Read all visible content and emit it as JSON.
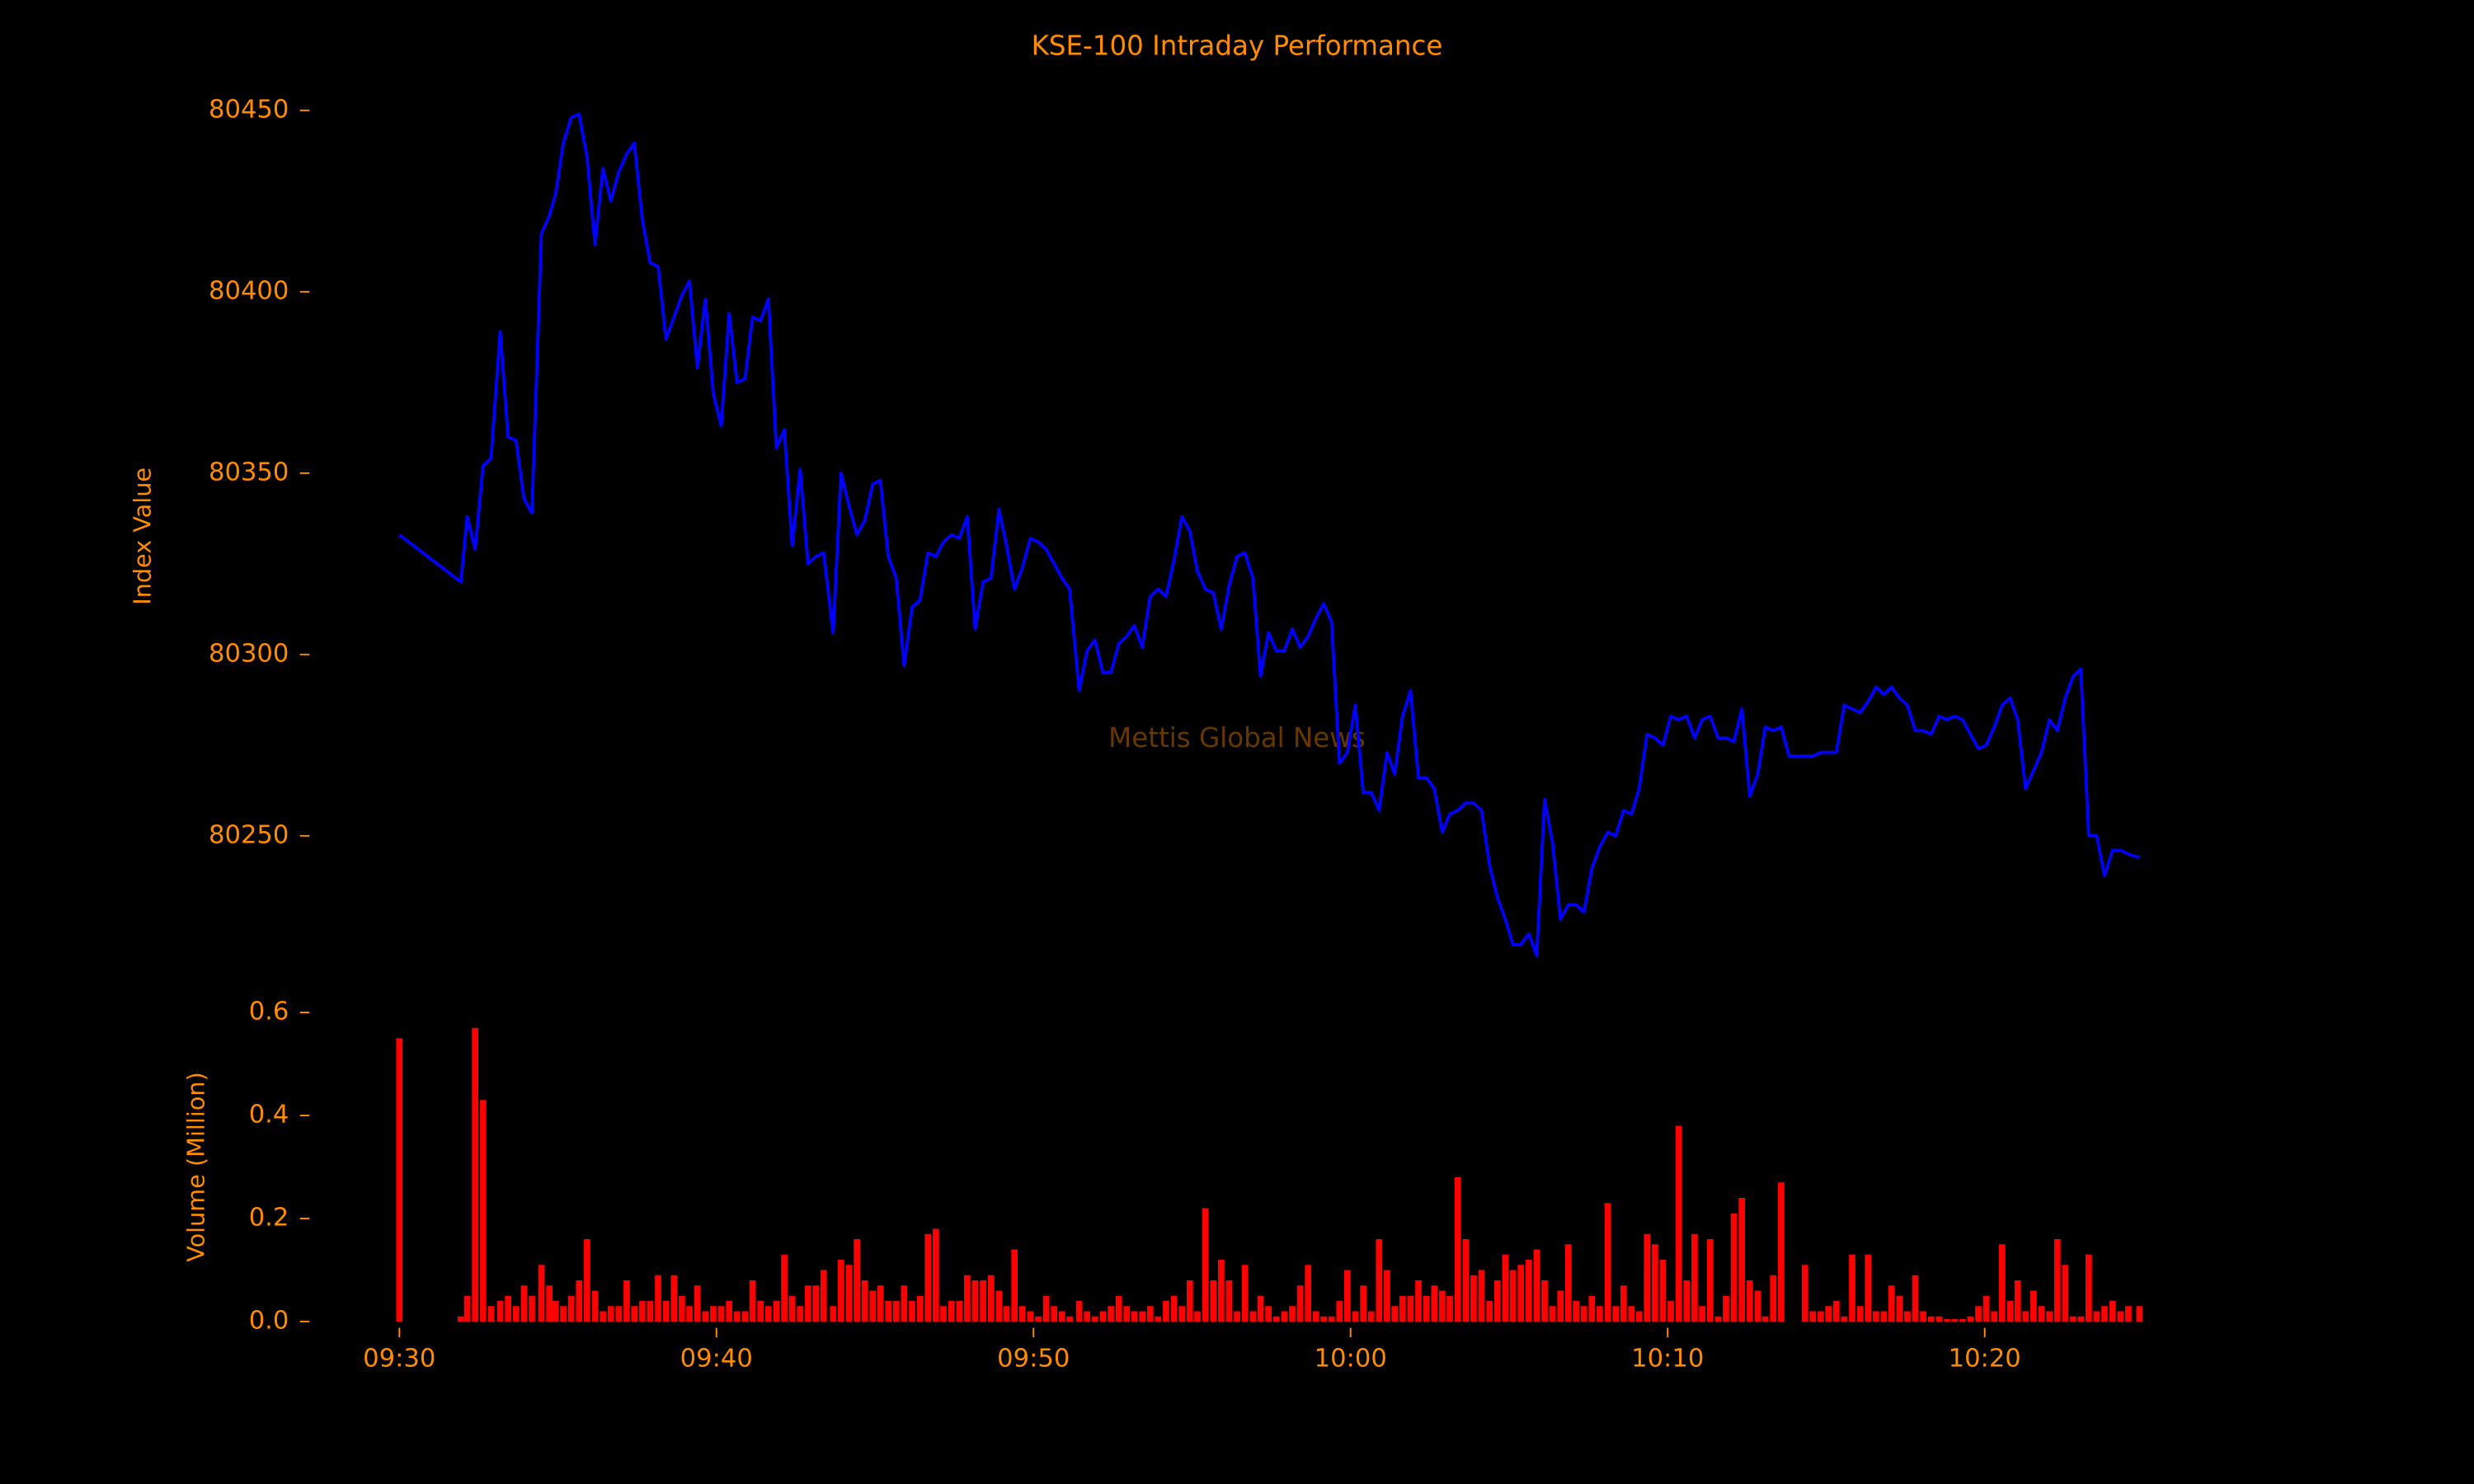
{
  "chart_data": [
    {
      "type": "line",
      "title": "KSE-100 Intraday Performance",
      "ylabel": "Index Value",
      "annotation": "Mettis Global News",
      "color": "#0000ff",
      "xlim": [
        567.5,
        627.5
      ],
      "ylim": [
        80210,
        80455
      ],
      "yticks": [
        80250,
        80300,
        80350,
        80400,
        80450
      ],
      "x": [
        570,
        571.94,
        572.14,
        572.39,
        572.64,
        572.89,
        573.18,
        573.43,
        573.68,
        573.93,
        574.18,
        574.48,
        574.73,
        574.93,
        575.17,
        575.42,
        575.67,
        575.92,
        576.17,
        576.42,
        576.67,
        576.92,
        577.17,
        577.41,
        577.66,
        577.91,
        578.16,
        578.41,
        578.66,
        578.91,
        579.15,
        579.4,
        579.65,
        579.9,
        580.15,
        580.4,
        580.65,
        580.9,
        581.14,
        581.39,
        581.64,
        581.89,
        582.14,
        582.39,
        582.64,
        582.89,
        583.13,
        583.38,
        583.68,
        583.93,
        584.18,
        584.43,
        584.68,
        584.93,
        585.17,
        585.42,
        585.67,
        585.92,
        586.17,
        586.42,
        586.67,
        586.92,
        587.16,
        587.41,
        587.66,
        587.91,
        588.16,
        588.41,
        588.66,
        588.91,
        589.15,
        589.4,
        589.65,
        589.9,
        590.15,
        590.4,
        590.65,
        590.9,
        591.14,
        591.44,
        591.69,
        591.94,
        592.19,
        592.44,
        592.69,
        592.94,
        593.18,
        593.43,
        593.68,
        593.93,
        594.18,
        594.43,
        594.68,
        594.93,
        595.17,
        595.42,
        595.67,
        595.92,
        596.17,
        596.42,
        596.67,
        596.92,
        597.16,
        597.41,
        597.66,
        597.91,
        598.16,
        598.41,
        598.66,
        598.91,
        599.15,
        599.4,
        599.65,
        599.9,
        600.15,
        600.4,
        600.65,
        600.9,
        601.15,
        601.39,
        601.64,
        601.89,
        602.14,
        602.39,
        602.64,
        602.89,
        603.13,
        603.38,
        603.63,
        603.88,
        604.13,
        604.38,
        604.63,
        604.88,
        605.12,
        605.37,
        605.62,
        605.87,
        606.12,
        606.37,
        606.62,
        606.87,
        607.11,
        607.36,
        607.61,
        607.86,
        608.11,
        608.36,
        608.61,
        608.86,
        609.1,
        609.35,
        609.6,
        609.85,
        610.1,
        610.35,
        610.6,
        610.85,
        611.09,
        611.34,
        611.59,
        611.84,
        612.09,
        612.34,
        612.59,
        612.84,
        613.08,
        613.33,
        613.58,
        613.83,
        614.08,
        614.33,
        614.58,
        614.83,
        615.07,
        615.32,
        615.57,
        615.82,
        616.07,
        616.32,
        616.57,
        616.82,
        617.06,
        617.31,
        617.56,
        617.81,
        618.06,
        618.31,
        618.56,
        618.81,
        619.05,
        619.3,
        619.55,
        619.8,
        620.05,
        620.3,
        620.55,
        620.8,
        621.04,
        621.29,
        621.54,
        621.79,
        622.04,
        622.29,
        622.54,
        622.79,
        623.03,
        623.28,
        623.53,
        623.78,
        624.03,
        624.28,
        624.53,
        624.88
      ],
      "values": [
        80333,
        80320,
        80338,
        80329,
        80352,
        80354,
        80389,
        80360,
        80359,
        80343,
        80339,
        80416,
        80421,
        80427,
        80441,
        80448,
        80449,
        80437,
        80413,
        80434,
        80425,
        80433,
        80438,
        80441,
        80420,
        80408,
        80407,
        80387,
        80393,
        80399,
        80403,
        80379,
        80398,
        80372,
        80363,
        80394,
        80375,
        80376,
        80393,
        80392,
        80398,
        80357,
        80362,
        80330,
        80351,
        80325,
        80327,
        80328,
        80306,
        80350,
        80341,
        80333,
        80337,
        80347,
        80348,
        80327,
        80321,
        80297,
        80313,
        80315,
        80328,
        80327,
        80331,
        80333,
        80332,
        80338,
        80307,
        80320,
        80321,
        80340,
        80330,
        80318,
        80324,
        80332,
        80331,
        80329,
        80325,
        80321,
        80318,
        80290,
        80301,
        80304,
        80295,
        80295,
        80303,
        80305,
        80308,
        80302,
        80316,
        80318,
        80316,
        80326,
        80338,
        80334,
        80323,
        80318,
        80317,
        80307,
        80319,
        80327,
        80328,
        80321,
        80294,
        80306,
        80301,
        80301,
        80307,
        80302,
        80305,
        80310,
        80314,
        80309,
        80270,
        80273,
        80286,
        80262,
        80262,
        80257,
        80273,
        80267,
        80283,
        80290,
        80266,
        80266,
        80263,
        80251,
        80256,
        80257,
        80259,
        80259,
        80257,
        80242,
        80233,
        80227,
        80220,
        80220,
        80223,
        80217,
        80260,
        80248,
        80227,
        80231,
        80231,
        80229,
        80241,
        80247,
        80251,
        80250,
        80257,
        80256,
        80263,
        80278,
        80277,
        80275,
        80283,
        80282,
        80283,
        80277,
        80282,
        80283,
        80277,
        80277,
        80276,
        80285,
        80261,
        80267,
        80280,
        80279,
        80280,
        80272,
        80272,
        80272,
        80272,
        80273,
        80273,
        80273,
        80286,
        80285,
        80284,
        80287,
        80291,
        80289,
        80291,
        80288,
        80286,
        80279,
        80279,
        80278,
        80283,
        80282,
        80283,
        80282,
        80278,
        80274,
        80275,
        80280,
        80286,
        80288,
        80282,
        80263,
        80268,
        80273,
        80282,
        80279,
        80288,
        80294,
        80296,
        80250,
        80250,
        80239,
        80246,
        80246,
        80245,
        80244
      ]
    },
    {
      "type": "bar",
      "ylabel": "Volume (Million)",
      "color": "#ff0000",
      "xlim": [
        567.5,
        627.5
      ],
      "ylim": [
        0,
        0.6
      ],
      "yticks": [
        {
          "value": 0,
          "label": "0.0"
        },
        0.2,
        0.4,
        0.6
      ],
      "xticks": [
        {
          "value": 570,
          "label": "09:30"
        },
        {
          "value": 580,
          "label": "09:40"
        },
        {
          "value": 590,
          "label": "09:50"
        },
        {
          "value": 600,
          "label": "10:00"
        },
        {
          "value": 610,
          "label": "10:10"
        },
        {
          "value": 620,
          "label": "10:20"
        }
      ],
      "x": [
        570,
        571.94,
        572.14,
        572.39,
        572.64,
        572.89,
        573.18,
        573.43,
        573.68,
        573.93,
        574.18,
        574.48,
        574.73,
        574.93,
        575.17,
        575.42,
        575.67,
        575.92,
        576.17,
        576.42,
        576.67,
        576.92,
        577.17,
        577.41,
        577.66,
        577.91,
        578.16,
        578.41,
        578.66,
        578.91,
        579.15,
        579.4,
        579.65,
        579.9,
        580.15,
        580.4,
        580.65,
        580.9,
        581.14,
        581.39,
        581.64,
        581.89,
        582.14,
        582.39,
        582.64,
        582.89,
        583.13,
        583.38,
        583.68,
        583.93,
        584.18,
        584.43,
        584.68,
        584.93,
        585.17,
        585.42,
        585.67,
        585.92,
        586.17,
        586.42,
        586.67,
        586.92,
        587.16,
        587.41,
        587.66,
        587.91,
        588.16,
        588.41,
        588.66,
        588.91,
        589.15,
        589.4,
        589.65,
        589.9,
        590.15,
        590.4,
        590.65,
        590.9,
        591.14,
        591.44,
        591.69,
        591.94,
        592.19,
        592.44,
        592.69,
        592.94,
        593.18,
        593.43,
        593.68,
        593.93,
        594.18,
        594.43,
        594.68,
        594.93,
        595.17,
        595.42,
        595.67,
        595.92,
        596.17,
        596.42,
        596.67,
        596.92,
        597.16,
        597.41,
        597.66,
        597.91,
        598.16,
        598.41,
        598.66,
        598.91,
        599.15,
        599.4,
        599.65,
        599.9,
        600.15,
        600.4,
        600.65,
        600.9,
        601.15,
        601.39,
        601.64,
        601.89,
        602.14,
        602.39,
        602.64,
        602.89,
        603.13,
        603.38,
        603.63,
        603.88,
        604.13,
        604.38,
        604.63,
        604.88,
        605.12,
        605.37,
        605.62,
        605.87,
        606.12,
        606.37,
        606.62,
        606.87,
        607.11,
        607.36,
        607.61,
        607.86,
        608.11,
        608.36,
        608.61,
        608.86,
        609.1,
        609.35,
        609.6,
        609.85,
        610.1,
        610.35,
        610.6,
        610.85,
        611.09,
        611.34,
        611.59,
        611.84,
        612.09,
        612.34,
        612.59,
        612.84,
        613.08,
        613.33,
        613.58,
        613.83,
        614.08,
        614.33,
        614.58,
        614.83,
        615.07,
        615.32,
        615.57,
        615.82,
        616.07,
        616.32,
        616.57,
        616.82,
        617.06,
        617.31,
        617.56,
        617.81,
        618.06,
        618.31,
        618.56,
        618.81,
        619.05,
        619.3,
        619.55,
        619.8,
        620.05,
        620.3,
        620.55,
        620.8,
        621.04,
        621.29,
        621.54,
        621.79,
        622.04,
        622.29,
        622.54,
        622.79,
        623.03,
        623.28,
        623.53,
        623.78,
        624.03,
        624.28,
        624.53,
        624.88
      ],
      "values": [
        0.55,
        0.01,
        0.05,
        0.57,
        0.43,
        0.03,
        0.04,
        0.05,
        0.03,
        0.07,
        0.05,
        0.11,
        0.07,
        0.04,
        0.03,
        0.05,
        0.08,
        0.16,
        0.06,
        0.02,
        0.03,
        0.03,
        0.08,
        0.03,
        0.04,
        0.04,
        0.09,
        0.04,
        0.09,
        0.05,
        0.03,
        0.07,
        0.02,
        0.03,
        0.03,
        0.04,
        0.02,
        0.02,
        0.08,
        0.04,
        0.03,
        0.04,
        0.13,
        0.05,
        0.03,
        0.07,
        0.07,
        0.1,
        0.03,
        0.12,
        0.11,
        0.16,
        0.08,
        0.06,
        0.07,
        0.04,
        0.04,
        0.07,
        0.04,
        0.05,
        0.17,
        0.18,
        0.03,
        0.04,
        0.04,
        0.09,
        0.08,
        0.08,
        0.09,
        0.06,
        0.03,
        0.14,
        0.03,
        0.02,
        0.01,
        0.05,
        0.03,
        0.02,
        0.01,
        0.04,
        0.02,
        0.01,
        0.02,
        0.03,
        0.05,
        0.03,
        0.02,
        0.02,
        0.03,
        0.01,
        0.04,
        0.05,
        0.03,
        0.08,
        0.02,
        0.22,
        0.08,
        0.12,
        0.08,
        0.02,
        0.11,
        0.02,
        0.05,
        0.03,
        0.01,
        0.02,
        0.03,
        0.07,
        0.11,
        0.02,
        0.01,
        0.01,
        0.04,
        0.1,
        0.02,
        0.07,
        0.02,
        0.16,
        0.1,
        0.03,
        0.05,
        0.05,
        0.08,
        0.05,
        0.07,
        0.06,
        0.05,
        0.28,
        0.16,
        0.09,
        0.1,
        0.04,
        0.08,
        0.13,
        0.1,
        0.11,
        0.12,
        0.14,
        0.08,
        0.03,
        0.06,
        0.15,
        0.04,
        0.03,
        0.05,
        0.03,
        0.23,
        0.03,
        0.07,
        0.03,
        0.02,
        0.17,
        0.15,
        0.12,
        0.04,
        0.38,
        0.08,
        0.17,
        0.03,
        0.16,
        0.01,
        0.05,
        0.21,
        0.24,
        0.08,
        0.06,
        0.01,
        0.09,
        0.27,
        0,
        0,
        0.11,
        0.02,
        0.02,
        0.03,
        0.04,
        0.01,
        0.13,
        0.03,
        0.13,
        0.02,
        0.02,
        0.07,
        0.05,
        0.02,
        0.09,
        0.02,
        0.01,
        0.01,
        0.005,
        0.005,
        0.005,
        0.01,
        0.03,
        0.05,
        0.02,
        0.15,
        0.04,
        0.08,
        0.02,
        0.06,
        0.03,
        0.02,
        0.16,
        0.11,
        0.01,
        0.01,
        0.13,
        0.02,
        0.03,
        0.04,
        0.02,
        0.03,
        0.03
      ]
    }
  ]
}
